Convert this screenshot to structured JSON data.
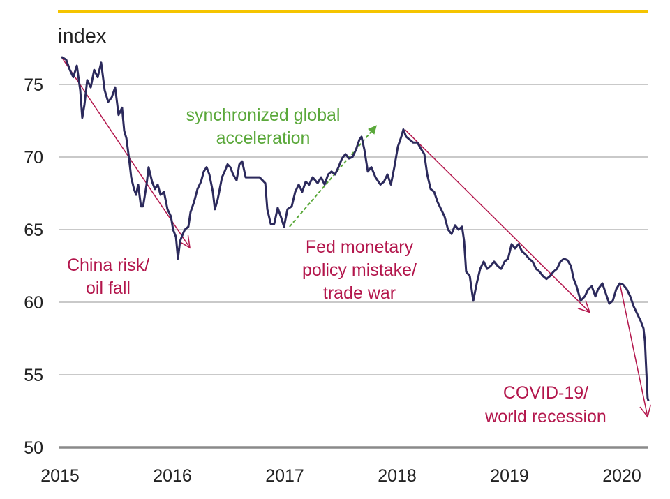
{
  "chart_data": {
    "type": "line",
    "title": "",
    "ylabel": "index",
    "xlabel": "",
    "ylim": [
      50,
      77
    ],
    "xlim": [
      2015,
      2020.25
    ],
    "grid": true,
    "yticks": [
      50,
      55,
      60,
      65,
      70,
      75
    ],
    "ytick_labels": [
      "50",
      "55",
      "60",
      "65",
      "70",
      "75"
    ],
    "xticks": [
      2015,
      2016,
      2017,
      2018,
      2019,
      2020
    ],
    "xtick_labels": [
      "2015",
      "2016",
      "2017",
      "2018",
      "2019",
      "2020"
    ],
    "colors": {
      "series": "#2c2a5c",
      "top_rule": "#f5c400",
      "grid": "#c9c9c9",
      "axis": "#8a8a8a",
      "red_annotation": "#b3164c",
      "green_annotation": "#5aa83a"
    },
    "series": [
      {
        "points": [
          [
            2015.0,
            76.9
          ],
          [
            2015.043,
            76.7
          ],
          [
            2015.075,
            76.0
          ],
          [
            2015.106,
            75.5
          ],
          [
            2015.137,
            76.3
          ],
          [
            2015.168,
            74.6
          ],
          [
            2015.186,
            72.7
          ],
          [
            2015.205,
            73.6
          ],
          [
            2015.23,
            75.3
          ],
          [
            2015.261,
            74.8
          ],
          [
            2015.292,
            76.0
          ],
          [
            2015.323,
            75.5
          ],
          [
            2015.354,
            76.5
          ],
          [
            2015.385,
            74.6
          ],
          [
            2015.416,
            73.8
          ],
          [
            2015.447,
            74.1
          ],
          [
            2015.478,
            74.8
          ],
          [
            2015.509,
            72.9
          ],
          [
            2015.54,
            73.4
          ],
          [
            2015.559,
            71.8
          ],
          [
            2015.578,
            71.3
          ],
          [
            2015.602,
            69.9
          ],
          [
            2015.621,
            68.6
          ],
          [
            2015.646,
            67.8
          ],
          [
            2015.665,
            67.4
          ],
          [
            2015.683,
            68.1
          ],
          [
            2015.708,
            66.6
          ],
          [
            2015.727,
            66.6
          ],
          [
            2015.758,
            68.1
          ],
          [
            2015.776,
            69.3
          ],
          [
            2015.807,
            68.3
          ],
          [
            2015.832,
            67.8
          ],
          [
            2015.857,
            68.1
          ],
          [
            2015.882,
            67.4
          ],
          [
            2015.913,
            67.6
          ],
          [
            2015.944,
            66.4
          ],
          [
            2015.975,
            65.9
          ],
          [
            2015.994,
            65.0
          ],
          [
            2016.019,
            64.5
          ],
          [
            2016.037,
            63.0
          ],
          [
            2016.056,
            64.2
          ],
          [
            2016.081,
            64.7
          ],
          [
            2016.099,
            65.0
          ],
          [
            2016.13,
            65.2
          ],
          [
            2016.149,
            66.2
          ],
          [
            2016.18,
            66.9
          ],
          [
            2016.211,
            67.8
          ],
          [
            2016.242,
            68.3
          ],
          [
            2016.267,
            69.0
          ],
          [
            2016.292,
            69.3
          ],
          [
            2016.317,
            68.8
          ],
          [
            2016.348,
            67.6
          ],
          [
            2016.366,
            66.4
          ],
          [
            2016.391,
            67.1
          ],
          [
            2016.429,
            68.6
          ],
          [
            2016.453,
            69.0
          ],
          [
            2016.478,
            69.5
          ],
          [
            2016.503,
            69.3
          ],
          [
            2016.528,
            68.8
          ],
          [
            2016.559,
            68.4
          ],
          [
            2016.584,
            69.5
          ],
          [
            2016.609,
            69.7
          ],
          [
            2016.64,
            68.6
          ],
          [
            2016.677,
            68.6
          ],
          [
            2016.72,
            68.6
          ],
          [
            2016.764,
            68.6
          ],
          [
            2016.814,
            68.2
          ],
          [
            2016.832,
            66.4
          ],
          [
            2016.863,
            65.4
          ],
          [
            2016.894,
            65.4
          ],
          [
            2016.925,
            66.5
          ],
          [
            2016.957,
            65.8
          ],
          [
            2016.981,
            65.2
          ],
          [
            2017.012,
            66.4
          ],
          [
            2017.05,
            66.6
          ],
          [
            2017.081,
            67.6
          ],
          [
            2017.112,
            68.1
          ],
          [
            2017.143,
            67.6
          ],
          [
            2017.174,
            68.3
          ],
          [
            2017.205,
            68.1
          ],
          [
            2017.236,
            68.6
          ],
          [
            2017.28,
            68.2
          ],
          [
            2017.311,
            68.6
          ],
          [
            2017.342,
            68.1
          ],
          [
            2017.373,
            68.8
          ],
          [
            2017.404,
            69.0
          ],
          [
            2017.435,
            68.8
          ],
          [
            2017.466,
            69.3
          ],
          [
            2017.497,
            69.9
          ],
          [
            2017.528,
            70.2
          ],
          [
            2017.559,
            69.9
          ],
          [
            2017.59,
            70.0
          ],
          [
            2017.621,
            70.5
          ],
          [
            2017.652,
            71.2
          ],
          [
            2017.671,
            71.4
          ],
          [
            2017.696,
            70.5
          ],
          [
            2017.727,
            69.0
          ],
          [
            2017.758,
            69.3
          ],
          [
            2017.795,
            68.6
          ],
          [
            2017.839,
            68.1
          ],
          [
            2017.87,
            68.3
          ],
          [
            2017.901,
            68.8
          ],
          [
            2017.932,
            68.1
          ],
          [
            2017.963,
            69.3
          ],
          [
            2017.994,
            70.7
          ],
          [
            2018.025,
            71.4
          ],
          [
            2018.043,
            71.9
          ],
          [
            2018.068,
            71.4
          ],
          [
            2018.099,
            71.2
          ],
          [
            2018.13,
            71.0
          ],
          [
            2018.168,
            71.0
          ],
          [
            2018.205,
            70.5
          ],
          [
            2018.23,
            70.2
          ],
          [
            2018.255,
            68.8
          ],
          [
            2018.286,
            67.8
          ],
          [
            2018.317,
            67.6
          ],
          [
            2018.348,
            66.9
          ],
          [
            2018.379,
            66.4
          ],
          [
            2018.41,
            65.9
          ],
          [
            2018.441,
            65.0
          ],
          [
            2018.472,
            64.7
          ],
          [
            2018.503,
            65.3
          ],
          [
            2018.534,
            65.0
          ],
          [
            2018.565,
            65.2
          ],
          [
            2018.584,
            64.2
          ],
          [
            2018.602,
            62.1
          ],
          [
            2018.634,
            61.8
          ],
          [
            2018.665,
            60.1
          ],
          [
            2018.696,
            61.3
          ],
          [
            2018.727,
            62.3
          ],
          [
            2018.758,
            62.8
          ],
          [
            2018.789,
            62.3
          ],
          [
            2018.82,
            62.5
          ],
          [
            2018.851,
            62.8
          ],
          [
            2018.882,
            62.5
          ],
          [
            2018.913,
            62.3
          ],
          [
            2018.944,
            62.8
          ],
          [
            2018.975,
            63.0
          ],
          [
            2019.006,
            64.0
          ],
          [
            2019.037,
            63.7
          ],
          [
            2019.068,
            64.0
          ],
          [
            2019.099,
            63.5
          ],
          [
            2019.13,
            63.3
          ],
          [
            2019.161,
            63.0
          ],
          [
            2019.193,
            62.8
          ],
          [
            2019.224,
            62.3
          ],
          [
            2019.255,
            62.1
          ],
          [
            2019.286,
            61.8
          ],
          [
            2019.317,
            61.6
          ],
          [
            2019.348,
            61.8
          ],
          [
            2019.379,
            62.1
          ],
          [
            2019.41,
            62.3
          ],
          [
            2019.441,
            62.8
          ],
          [
            2019.472,
            63.0
          ],
          [
            2019.503,
            62.9
          ],
          [
            2019.534,
            62.5
          ],
          [
            2019.559,
            61.6
          ],
          [
            2019.584,
            61.1
          ],
          [
            2019.621,
            60.1
          ],
          [
            2019.658,
            60.4
          ],
          [
            2019.689,
            60.9
          ],
          [
            2019.72,
            61.1
          ],
          [
            2019.752,
            60.4
          ],
          [
            2019.776,
            60.9
          ],
          [
            2019.814,
            61.3
          ],
          [
            2019.845,
            60.6
          ],
          [
            2019.876,
            59.9
          ],
          [
            2019.907,
            60.1
          ],
          [
            2019.938,
            60.9
          ],
          [
            2019.969,
            61.3
          ],
          [
            2020.0,
            61.2
          ],
          [
            2020.031,
            60.9
          ],
          [
            2020.062,
            60.4
          ],
          [
            2020.093,
            59.7
          ],
          [
            2020.124,
            59.2
          ],
          [
            2020.155,
            58.7
          ],
          [
            2020.18,
            58.2
          ],
          [
            2020.193,
            57.3
          ],
          [
            2020.205,
            55.3
          ],
          [
            2020.217,
            53.4
          ],
          [
            2020.224,
            53.2
          ]
        ]
      }
    ],
    "annotations": [
      {
        "lines": [
          "China risk/",
          "oil fall"
        ],
        "color": "red",
        "arrow_from": [
          2015.0,
          76.9
        ],
        "arrow_to": [
          2016.143,
          63.75
        ]
      },
      {
        "lines": [
          "synchronized global",
          "acceleration"
        ],
        "color": "green",
        "arrow_from": [
          2017.03,
          65.2
        ],
        "arrow_to": [
          2017.807,
          72.2
        ]
      },
      {
        "lines": [
          "Fed monetary",
          "policy mistake/",
          "trade war"
        ],
        "color": "red",
        "arrow_from": [
          2018.056,
          71.9
        ],
        "arrow_to": [
          2019.702,
          59.3
        ]
      },
      {
        "lines": [
          "COVID-19/",
          "world recession"
        ],
        "color": "red",
        "arrow_from": [
          2019.969,
          61.3
        ],
        "arrow_to": [
          2020.217,
          52.1
        ]
      }
    ]
  }
}
